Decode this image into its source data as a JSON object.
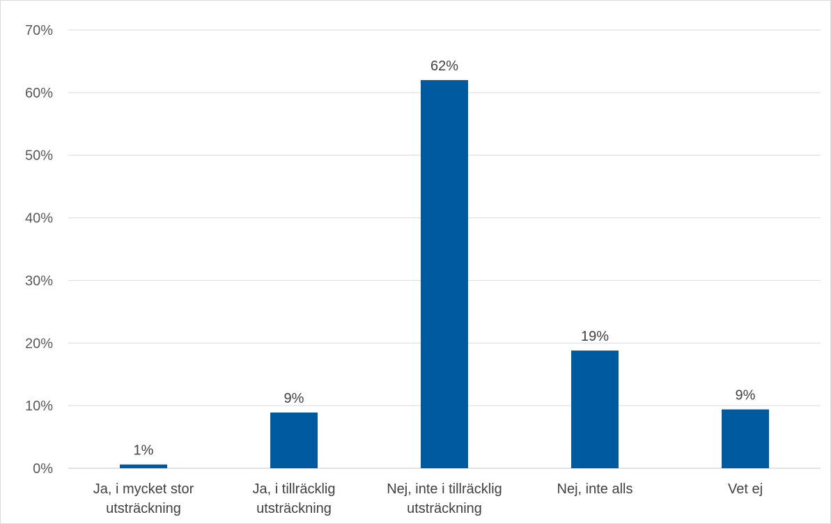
{
  "chart_data": {
    "type": "bar",
    "categories": [
      [
        "Ja, i mycket stor",
        "utsträckning"
      ],
      [
        "Ja, i tillräcklig",
        "utsträckning"
      ],
      [
        "Nej, inte i tillräcklig",
        "utsträckning"
      ],
      [
        "Nej, inte alls"
      ],
      [
        "Vet ej"
      ]
    ],
    "values": [
      0.6,
      8.9,
      62,
      18.8,
      9.4
    ],
    "data_labels": [
      "1%",
      "9%",
      "62%",
      "19%",
      "9%"
    ],
    "ylim": [
      0,
      70
    ],
    "yticks": [
      0,
      10,
      20,
      30,
      40,
      50,
      60,
      70
    ],
    "ytick_labels": [
      "0%",
      "10%",
      "20%",
      "30%",
      "40%",
      "50%",
      "60%",
      "70%"
    ],
    "title": "",
    "xlabel": "",
    "ylabel": "",
    "grid": true,
    "bar_color": "#005AA0",
    "grid_color": "#d9d9d9"
  }
}
